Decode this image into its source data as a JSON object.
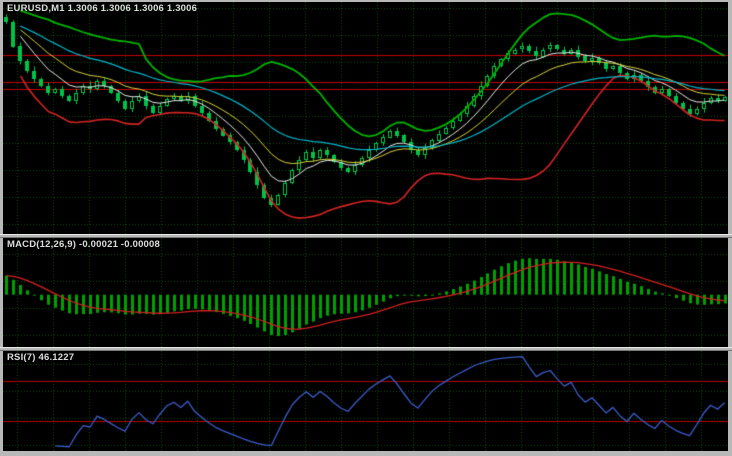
{
  "app": {
    "name": "trading-chart-terminal"
  },
  "frame_color": "#b8b8b8",
  "grid": {
    "color": "#0d4a0d",
    "v_spacing": 36,
    "h_spacing": 27,
    "v_offset": 14
  },
  "chart_data": [
    {
      "type": "candlestick",
      "symbol": "EURUSD",
      "timeframe": "M1",
      "label": "EURUSD,M1 1.3006 1.3006 1.3006 1.3006",
      "last_bar": {
        "open": 1.3006,
        "high": 1.3006,
        "low": 1.3006,
        "close": 1.3006
      },
      "ylim": [
        1.297,
        1.3031
      ],
      "price_base": 1.3,
      "closes_pips": [
        25.8,
        19.3,
        15.4,
        12.8,
        10.7,
        8.9,
        7.1,
        8.1,
        6.3,
        5.0,
        7.1,
        8.9,
        8.1,
        10.2,
        8.9,
        7.1,
        5.0,
        2.9,
        5.0,
        6.3,
        3.7,
        1.9,
        3.7,
        5.5,
        6.3,
        5.0,
        6.3,
        3.7,
        1.9,
        -0.2,
        -2.3,
        -4.1,
        -5.9,
        -8.0,
        -10.6,
        -13.7,
        -17.1,
        -20.5,
        -22.3,
        -19.7,
        -16.6,
        -13.2,
        -10.6,
        -8.5,
        -10.1,
        -8.0,
        -9.3,
        -11.1,
        -12.7,
        -13.7,
        -11.9,
        -10.1,
        -8.0,
        -6.2,
        -4.6,
        -2.8,
        -4.1,
        -5.9,
        -8.0,
        -9.3,
        -7.5,
        -5.4,
        -3.6,
        -2.0,
        -0.2,
        1.6,
        3.7,
        6.3,
        8.9,
        11.5,
        14.1,
        15.9,
        17.5,
        18.5,
        19.3,
        18.0,
        16.7,
        18.5,
        19.6,
        18.5,
        17.5,
        18.5,
        16.7,
        15.4,
        16.2,
        14.9,
        13.3,
        14.1,
        12.3,
        10.7,
        11.8,
        10.2,
        8.6,
        7.1,
        8.1,
        6.3,
        4.5,
        2.9,
        1.6,
        2.9,
        4.5,
        5.8,
        5.0,
        6.0
      ],
      "wicks_pips": [
        1.1,
        0.6,
        1.5,
        0.9,
        1.8,
        0.7,
        1.2,
        0.5,
        1.1,
        0.6,
        1.5,
        0.9,
        1.8,
        0.7,
        1.2,
        0.5,
        1.1,
        0.6,
        1.5,
        0.9,
        1.8,
        0.7,
        1.2,
        0.5,
        1.1,
        0.6,
        1.5,
        0.9,
        1.8,
        0.7,
        1.2,
        0.5,
        1.1,
        0.6,
        1.5,
        0.9,
        1.8,
        0.7,
        1.2,
        0.5,
        1.1,
        0.6,
        1.5,
        0.9,
        1.8,
        0.7,
        1.2,
        0.5,
        1.1,
        0.6,
        1.5,
        0.9,
        1.8,
        0.7,
        1.2,
        0.5,
        1.1,
        0.6,
        1.5,
        0.9,
        1.8,
        0.7,
        1.2,
        0.5,
        1.1,
        0.6,
        1.5,
        0.9,
        1.8,
        0.7,
        1.2,
        0.5,
        1.1,
        0.6,
        1.5,
        0.9,
        1.8,
        0.7,
        1.2,
        0.5,
        1.1,
        0.6,
        1.5,
        0.9,
        1.8,
        0.7,
        1.2,
        0.5,
        1.1,
        0.6,
        1.5,
        0.9,
        1.8,
        0.7,
        1.2,
        0.5,
        1.1,
        0.6,
        1.5,
        0.9,
        1.8,
        0.7,
        1.2,
        0.5
      ],
      "levels": [
        1.3017,
        1.301,
        1.3008
      ],
      "colors": {
        "candle": "#00c24a",
        "bull_fill": "#000000",
        "level": "#c00000"
      },
      "overlays": [
        {
          "name": "bb-upper",
          "kind": "bollinger_upper",
          "period": 20,
          "deviation": 2,
          "color": "#00b400",
          "width": 1.8
        },
        {
          "name": "bb-lower",
          "kind": "bollinger_lower",
          "period": 20,
          "deviation": 2,
          "color": "#d42424",
          "width": 1.6
        },
        {
          "name": "ema-7",
          "kind": "ema",
          "period": 7,
          "color": "#e8e8e8",
          "width": 1
        },
        {
          "name": "ema-14",
          "kind": "ema",
          "period": 14,
          "color": "#d8d23c",
          "width": 1
        },
        {
          "name": "ema-28",
          "kind": "ema",
          "period": 28,
          "color": "#00b4c8",
          "width": 1.2
        }
      ]
    },
    {
      "type": "bar",
      "indicator": "MACD",
      "label": "MACD(12,26,9) -0.00021 -0.00008",
      "fast": 12,
      "slow": 26,
      "signal": 9,
      "value_main": -0.00021,
      "value_signal": -8e-05,
      "warmup_offset_pips": -3.5,
      "colors": {
        "histogram": "#00a000",
        "signal": "#d22020"
      }
    },
    {
      "type": "line",
      "indicator": "RSI",
      "label": "RSI(7) 46.1227",
      "period": 7,
      "value": 46.1227,
      "ylim": [
        0,
        100
      ],
      "levels": [
        70,
        30
      ],
      "colors": {
        "line": "#3c5cc8",
        "level": "#b40000"
      }
    }
  ]
}
